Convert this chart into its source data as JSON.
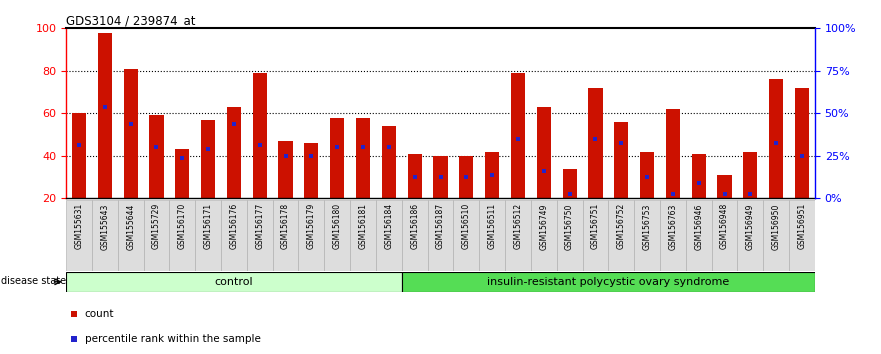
{
  "title": "GDS3104 / 239874_at",
  "samples": [
    "GSM155631",
    "GSM155643",
    "GSM155644",
    "GSM155729",
    "GSM156170",
    "GSM156171",
    "GSM156176",
    "GSM156177",
    "GSM156178",
    "GSM156179",
    "GSM156180",
    "GSM156181",
    "GSM156184",
    "GSM156186",
    "GSM156187",
    "GSM156510",
    "GSM156511",
    "GSM156512",
    "GSM156749",
    "GSM156750",
    "GSM156751",
    "GSM156752",
    "GSM156753",
    "GSM156763",
    "GSM156946",
    "GSM156948",
    "GSM156949",
    "GSM156950",
    "GSM156951"
  ],
  "count_values": [
    60,
    98,
    81,
    59,
    43,
    57,
    63,
    79,
    47,
    46,
    58,
    58,
    54,
    41,
    40,
    40,
    42,
    79,
    63,
    34,
    72,
    56,
    42,
    62,
    41,
    31,
    42,
    76,
    72
  ],
  "percentile_values": [
    45,
    63,
    55,
    44,
    39,
    43,
    55,
    45,
    40,
    40,
    44,
    44,
    44,
    30,
    30,
    30,
    31,
    48,
    33,
    22,
    48,
    46,
    30,
    22,
    27,
    22,
    22,
    46,
    40
  ],
  "control_count": 13,
  "disease_label": "insulin-resistant polycystic ovary syndrome",
  "control_label": "control",
  "disease_state_label": "disease state",
  "ylim_left": [
    20,
    100
  ],
  "ylim_right": [
    0,
    100
  ],
  "yticks_left": [
    20,
    40,
    60,
    80,
    100
  ],
  "yticks_right": [
    0,
    25,
    50,
    75,
    100
  ],
  "ytick_labels_right": [
    "0%",
    "25%",
    "50%",
    "75%",
    "100%"
  ],
  "bar_color": "#CC1100",
  "percentile_color": "#2222CC",
  "control_bg": "#CCFFCC",
  "disease_bg": "#55DD55",
  "xlabel_bg": "#DDDDDD",
  "bar_width": 0.55,
  "legend_count": "count",
  "legend_pct": "percentile rank within the sample"
}
